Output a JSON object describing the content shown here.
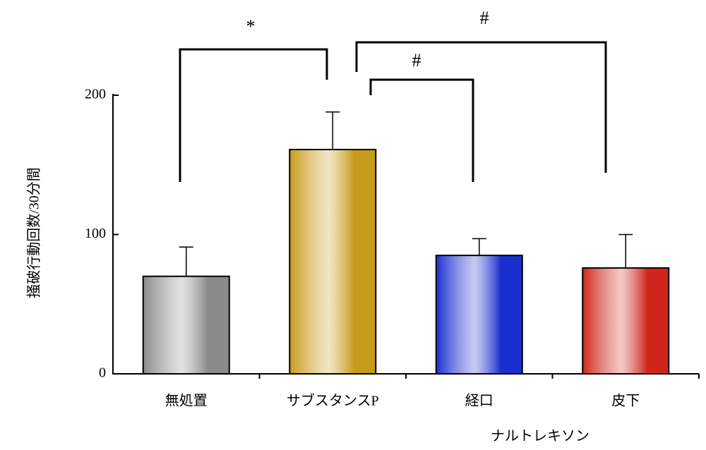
{
  "chart_data": {
    "type": "bar",
    "y_label": "掻破行動回数/30分間",
    "categories": [
      "無処置",
      "サブスタンスP",
      "経口",
      "皮下"
    ],
    "values": [
      70,
      161,
      85,
      76
    ],
    "errors": [
      21,
      27,
      12,
      24
    ],
    "colors": [
      "#8a8a8a",
      "#c89a1a",
      "#1a2fd0",
      "#d0251a"
    ],
    "group_label": "ナルトレキソン",
    "annotations": [
      "*",
      "#",
      "#"
    ],
    "ylim": [
      0,
      200
    ],
    "yticks": [
      0,
      100,
      200
    ],
    "grid": false
  }
}
